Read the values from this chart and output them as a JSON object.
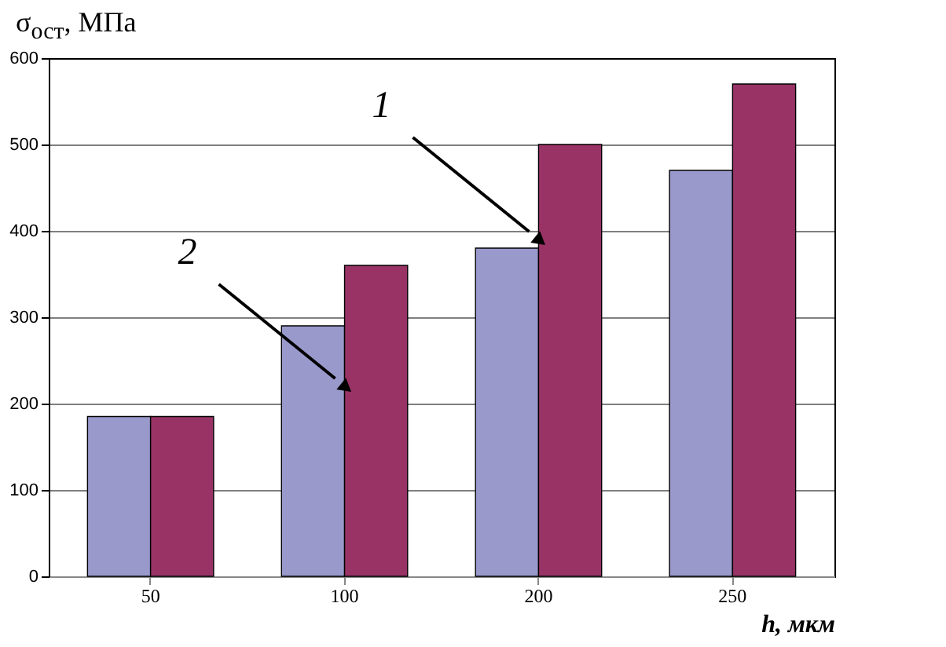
{
  "chart_data": {
    "type": "bar",
    "ylabel": "σ$_{ост}$, МПа",
    "xlabel": "h, мкм",
    "categories": [
      "50",
      "100",
      "200",
      "250"
    ],
    "series": [
      {
        "color": "#9999cc",
        "values": [
          185,
          290,
          380,
          470
        ]
      },
      {
        "color": "#993366",
        "values": [
          185,
          360,
          500,
          570
        ]
      }
    ],
    "ylim": [
      0,
      600
    ],
    "yticks": [
      0,
      100,
      200,
      300,
      400,
      500,
      600
    ],
    "grid": "y",
    "annotations": [
      {
        "text": "1",
        "x": "200",
        "y": 390
      },
      {
        "text": "2",
        "x": "100",
        "y": 220
      }
    ]
  }
}
